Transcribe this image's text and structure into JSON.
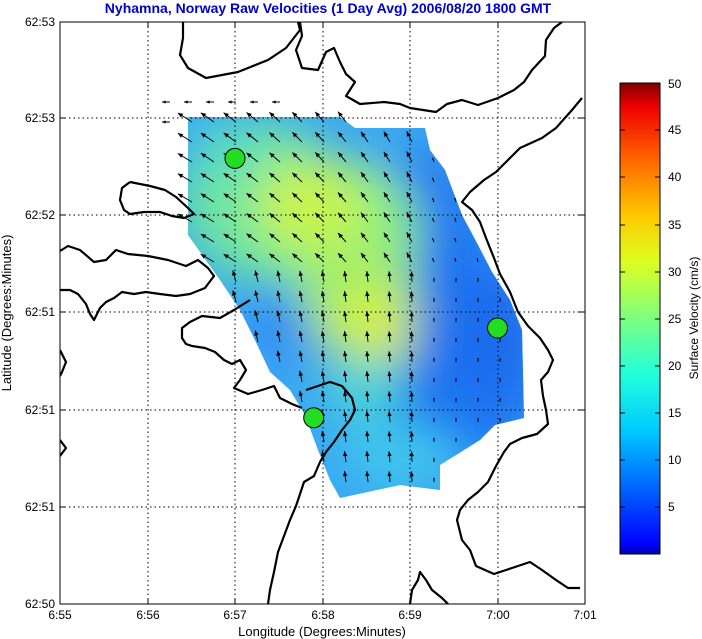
{
  "chart_data": {
    "type": "heatmap",
    "title": "Nyhamna, Norway Raw Velocities (1 Day Avg) 2006/08/20 1800 GMT",
    "xlabel": "Longitude (Degrees:Minutes)",
    "ylabel": "Latitude (Degrees:Minutes)",
    "x_ticks": [
      "6:55",
      "6:56",
      "6:57",
      "6:58",
      "6:59",
      "7:00",
      "7:01"
    ],
    "y_ticks": [
      "62:50",
      "62:51",
      "62:51",
      "62:51",
      "62:52",
      "62:53",
      "62:53"
    ],
    "grid": true,
    "colorbar": {
      "label": "Surface Velocity (cm/s)",
      "ticks": [
        "5",
        "10",
        "15",
        "20",
        "25",
        "30",
        "35",
        "40",
        "45",
        "50"
      ],
      "range": [
        0,
        50
      ],
      "colormap": "jet"
    },
    "sites": [
      {
        "lon": 6.95,
        "lat": 62.878
      },
      {
        "lon": 6.965,
        "lat": 62.852
      },
      {
        "lon": 7.0,
        "lat": 62.861
      }
    ],
    "title_color": "#0000cc",
    "site_color": "#22dd22"
  }
}
